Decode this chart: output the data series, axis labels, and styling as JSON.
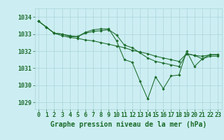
{
  "bg_color": "#cceef2",
  "grid_color": "#aad4da",
  "line_color": "#1a6b2a",
  "marker_color": "#1a6b2a",
  "xlabel": "Graphe pression niveau de la mer (hPa)",
  "xlabel_fontsize": 7,
  "tick_fontsize": 6,
  "ylabel_ticks": [
    1029,
    1030,
    1031,
    1032,
    1033,
    1034
  ],
  "xlim": [
    -0.5,
    23.5
  ],
  "ylim": [
    1028.6,
    1034.5
  ],
  "x_ticks": [
    0,
    1,
    2,
    3,
    4,
    5,
    6,
    7,
    8,
    9,
    10,
    11,
    12,
    13,
    14,
    15,
    16,
    17,
    18,
    19,
    20,
    21,
    22,
    23
  ],
  "line1": [
    1033.75,
    1033.4,
    1033.05,
    1033.0,
    1032.9,
    1032.85,
    1033.1,
    1033.25,
    1033.3,
    1033.3,
    1032.6,
    1031.5,
    1031.35,
    1030.25,
    1029.2,
    1030.5,
    1029.8,
    1030.55,
    1030.6,
    1032.0,
    1031.1,
    1031.55,
    1031.8,
    1031.8
  ],
  "line2": [
    1033.75,
    1033.4,
    1033.05,
    1032.9,
    1032.8,
    1032.75,
    1032.65,
    1032.6,
    1032.5,
    1032.4,
    1032.3,
    1032.2,
    1032.05,
    1031.95,
    1031.85,
    1031.7,
    1031.6,
    1031.5,
    1031.4,
    1031.85,
    1031.75,
    1031.7,
    1031.78,
    1031.78
  ],
  "line3": [
    1033.75,
    1033.4,
    1033.05,
    1033.0,
    1032.85,
    1032.85,
    1033.05,
    1033.15,
    1033.2,
    1033.25,
    1032.95,
    1032.35,
    1032.2,
    1031.9,
    1031.6,
    1031.4,
    1031.3,
    1031.2,
    1031.1,
    1031.85,
    1031.75,
    1031.55,
    1031.7,
    1031.7
  ]
}
